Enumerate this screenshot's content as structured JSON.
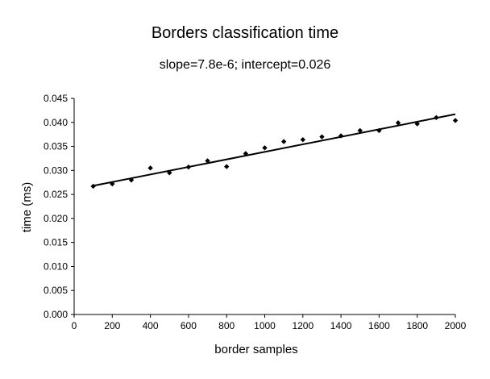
{
  "chart_data": {
    "type": "scatter",
    "title": "Borders classification time",
    "subtitle": "slope=7.8e-6; intercept=0.026",
    "xlabel": "border samples",
    "ylabel": "time (ms)",
    "xlim": [
      0,
      2000
    ],
    "ylim": [
      0.0,
      0.045
    ],
    "x_ticks": [
      "0",
      "200",
      "400",
      "600",
      "800",
      "1000",
      "1200",
      "1400",
      "1600",
      "1800",
      "2000"
    ],
    "y_ticks": [
      "0.000",
      "0.005",
      "0.010",
      "0.015",
      "0.020",
      "0.025",
      "0.030",
      "0.035",
      "0.040",
      "0.045"
    ],
    "grid": false,
    "legend": "none",
    "series": [
      {
        "marker": "diamond",
        "x": [
          100,
          200,
          300,
          400,
          500,
          600,
          700,
          800,
          900,
          1000,
          1100,
          1200,
          1300,
          1400,
          1500,
          1600,
          1700,
          1800,
          1900,
          2000
        ],
        "y": [
          0.0267,
          0.0272,
          0.028,
          0.0305,
          0.0295,
          0.0307,
          0.032,
          0.0308,
          0.0335,
          0.0347,
          0.036,
          0.0364,
          0.037,
          0.0372,
          0.0383,
          0.0383,
          0.0399,
          0.0397,
          0.041,
          0.0404
        ]
      }
    ],
    "trendline": {
      "type": "linear",
      "x": [
        100,
        2000
      ],
      "y": [
        0.0268,
        0.0417
      ]
    },
    "colors": {
      "marker": "#000000",
      "line": "#000000",
      "axis": "#000000"
    }
  }
}
